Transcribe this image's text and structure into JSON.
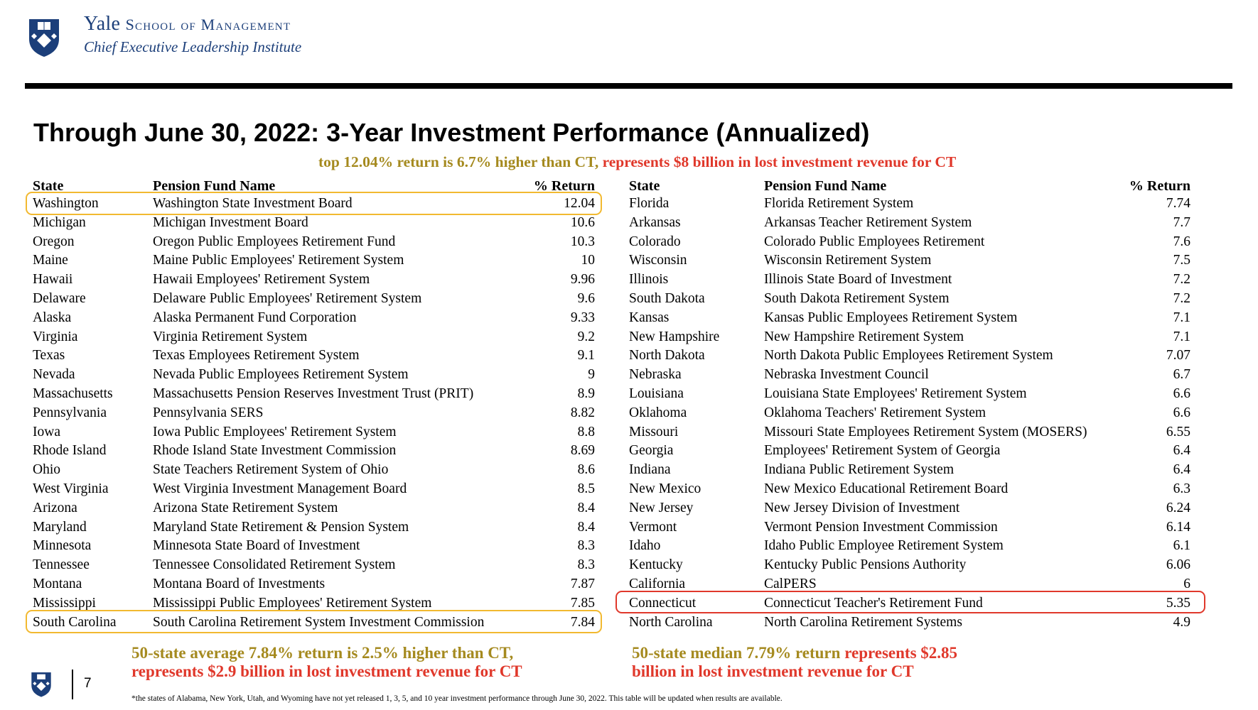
{
  "header": {
    "brand_name": "Yale",
    "brand_school": "School of Management",
    "brand_subtitle": "Chief Executive Leadership Institute"
  },
  "title": "Through June 30, 2022: 3-Year Investment Performance (Annualized)",
  "note_top": {
    "gold": "top 12.04% return is 6.7% higher than CT,",
    "red": "represents $8 billion in lost investment revenue for CT"
  },
  "columns": {
    "state": "State",
    "fund": "Pension Fund Name",
    "return": "% Return"
  },
  "left_rows": [
    {
      "state": "Washington",
      "fund": "Washington State Investment Board",
      "return": "12.04"
    },
    {
      "state": "Michigan",
      "fund": "Michigan Investment Board",
      "return": "10.6"
    },
    {
      "state": "Oregon",
      "fund": "Oregon Public Employees Retirement Fund",
      "return": "10.3"
    },
    {
      "state": "Maine",
      "fund": "Maine Public Employees' Retirement System",
      "return": "10"
    },
    {
      "state": "Hawaii",
      "fund": "Hawaii Employees' Retirement System",
      "return": "9.96"
    },
    {
      "state": "Delaware",
      "fund": "Delaware Public Employees' Retirement System",
      "return": "9.6"
    },
    {
      "state": "Alaska",
      "fund": "Alaska Permanent Fund Corporation",
      "return": "9.33"
    },
    {
      "state": "Virginia",
      "fund": "Virginia Retirement System",
      "return": "9.2"
    },
    {
      "state": "Texas",
      "fund": "Texas Employees Retirement System",
      "return": "9.1"
    },
    {
      "state": "Nevada",
      "fund": "Nevada Public Employees Retirement System",
      "return": "9"
    },
    {
      "state": "Massachusetts",
      "fund": "Massachusetts Pension Reserves Investment Trust (PRIT)",
      "return": "8.9"
    },
    {
      "state": "Pennsylvania",
      "fund": "Pennsylvania SERS",
      "return": "8.82"
    },
    {
      "state": "Iowa",
      "fund": "Iowa Public Employees' Retirement System",
      "return": "8.8"
    },
    {
      "state": "Rhode Island",
      "fund": "Rhode Island State Investment Commission",
      "return": "8.69"
    },
    {
      "state": "Ohio",
      "fund": "State Teachers Retirement System of Ohio",
      "return": "8.6"
    },
    {
      "state": "West Virginia",
      "fund": "West Virginia Investment Management Board",
      "return": "8.5"
    },
    {
      "state": "Arizona",
      "fund": "Arizona State Retirement System",
      "return": "8.4"
    },
    {
      "state": "Maryland",
      "fund": "Maryland State Retirement & Pension System",
      "return": "8.4"
    },
    {
      "state": "Minnesota",
      "fund": "Minnesota State Board of Investment",
      "return": "8.3"
    },
    {
      "state": "Tennessee",
      "fund": "Tennessee Consolidated Retirement System",
      "return": "8.3"
    },
    {
      "state": "Montana",
      "fund": "Montana Board of Investments",
      "return": "7.87"
    },
    {
      "state": "Mississippi",
      "fund": "Mississippi Public Employees' Retirement System",
      "return": "7.85"
    },
    {
      "state": "South Carolina",
      "fund": "South Carolina Retirement System Investment Commission",
      "return": "7.84"
    }
  ],
  "right_rows": [
    {
      "state": "Florida",
      "fund": "Florida Retirement System",
      "return": "7.74"
    },
    {
      "state": "Arkansas",
      "fund": "Arkansas Teacher Retirement System",
      "return": "7.7"
    },
    {
      "state": "Colorado",
      "fund": "Colorado Public Employees Retirement",
      "return": "7.6"
    },
    {
      "state": "Wisconsin",
      "fund": "Wisconsin Retirement System",
      "return": "7.5"
    },
    {
      "state": "Illinois",
      "fund": "Illinois State Board of Investment",
      "return": "7.2"
    },
    {
      "state": "South Dakota",
      "fund": "South Dakota Retirement System",
      "return": "7.2"
    },
    {
      "state": "Kansas",
      "fund": "Kansas Public Employees Retirement System",
      "return": "7.1"
    },
    {
      "state": "New Hampshire",
      "fund": "New Hampshire Retirement System",
      "return": "7.1"
    },
    {
      "state": "North Dakota",
      "fund": "North Dakota Public Employees Retirement System",
      "return": "7.07"
    },
    {
      "state": "Nebraska",
      "fund": "Nebraska Investment Council",
      "return": "6.7"
    },
    {
      "state": "Louisiana",
      "fund": "Louisiana State Employees' Retirement System",
      "return": "6.6"
    },
    {
      "state": "Oklahoma",
      "fund": "Oklahoma Teachers' Retirement System",
      "return": "6.6"
    },
    {
      "state": "Missouri",
      "fund": "Missouri State Employees Retirement System (MOSERS)",
      "return": "6.55"
    },
    {
      "state": "Georgia",
      "fund": "Employees' Retirement System of Georgia",
      "return": "6.4"
    },
    {
      "state": "Indiana",
      "fund": "Indiana Public Retirement System",
      "return": "6.4"
    },
    {
      "state": "New Mexico",
      "fund": "New Mexico Educational Retirement Board",
      "return": "6.3"
    },
    {
      "state": "New Jersey",
      "fund": "New Jersey Division of Investment",
      "return": "6.24"
    },
    {
      "state": "Vermont",
      "fund": "Vermont Pension Investment Commission",
      "return": "6.14"
    },
    {
      "state": "Idaho",
      "fund": "Idaho Public Employee Retirement System",
      "return": "6.1"
    },
    {
      "state": "Kentucky",
      "fund": "Kentucky Public Pensions Authority",
      "return": "6.06"
    },
    {
      "state": "California",
      "fund": "CalPERS",
      "return": "6"
    },
    {
      "state": "Connecticut",
      "fund": "Connecticut Teacher's Retirement Fund",
      "return": "5.35"
    },
    {
      "state": "North Carolina",
      "fund": "North Carolina Retirement Systems",
      "return": "4.9"
    }
  ],
  "note_bottom_left": {
    "gold": "50-state average 7.84% return is 2.5% higher than CT,",
    "red": "represents $2.9 billion in lost investment revenue for CT"
  },
  "note_bottom_right": {
    "gold": "50-state median 7.79% return",
    "red1": "represents $2.85",
    "red2": "billion in lost investment revenue for CT"
  },
  "footnote": "*the states of Alabama, New York, Utah, and Wyoming have not yet released 1, 3, 5, and 10 year investment performance through June 30, 2022. This table will be updated when results are available.",
  "page_number": "7",
  "colors": {
    "brand_blue": "#1c3f7a",
    "gold_text": "#a58a1f",
    "red_text": "#e0382b",
    "gold_box": "#f2b930"
  }
}
